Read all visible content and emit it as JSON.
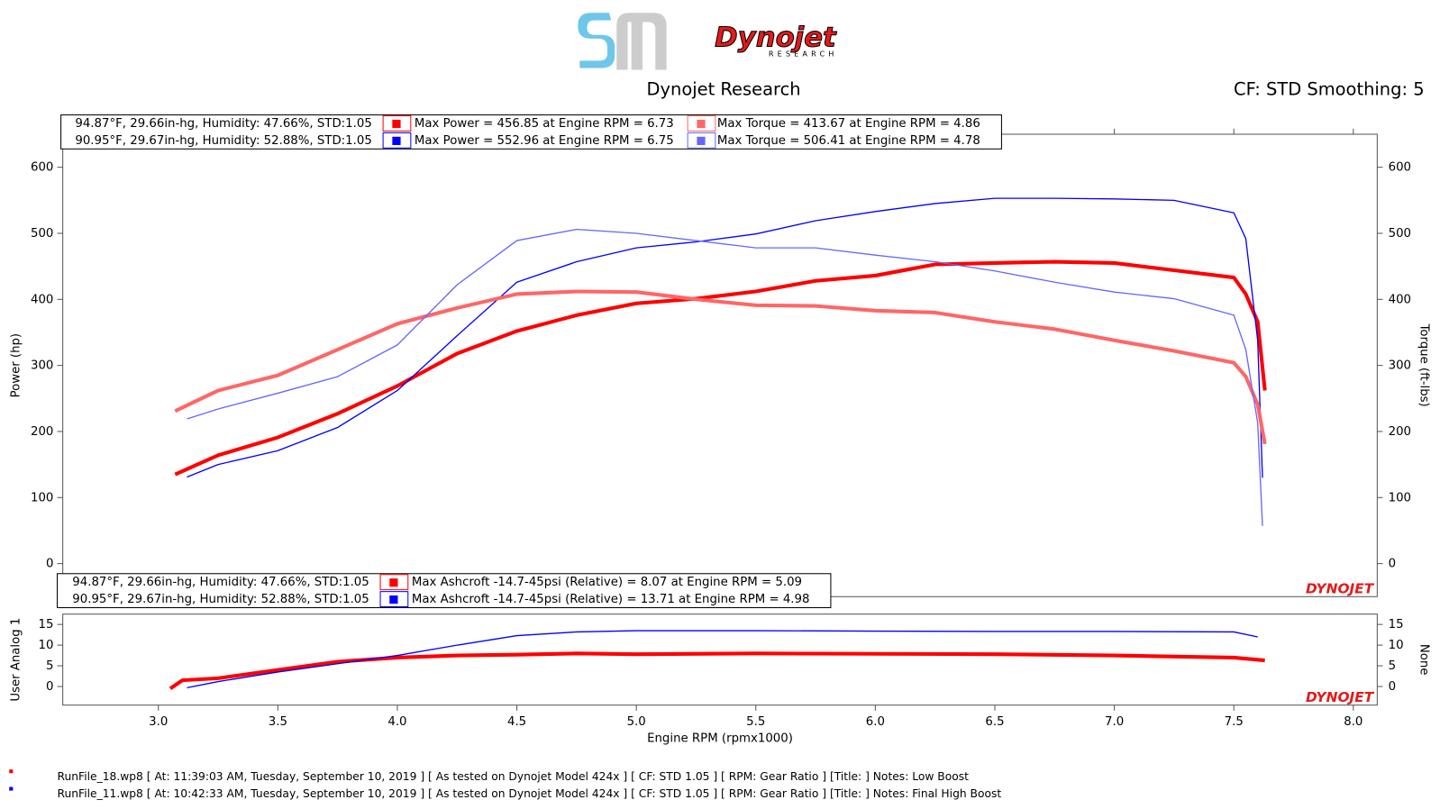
{
  "header": {
    "title": "Dynojet Research",
    "settings": "CF: STD Smoothing: 5",
    "logo": "Dynojet",
    "logo_sub": "RESEARCH"
  },
  "footer": [
    "RunFile_18.wp8 [ At: 11:39:03 AM, Tuesday, September 10, 2019 ] [ As tested on Dynojet Model 424x ] [ CF: STD 1.05 ] [ RPM: Gear Ratio ] [Title: ]  Notes: Low Boost",
    "RunFile_11.wp8 [ At: 10:42:33 AM, Tuesday, September 10, 2019 ] [ As tested on Dynojet Model 424x ] [ CF: STD 1.05 ] [ RPM: Gear Ratio ] [Title: ]  Notes: Final High Boost"
  ],
  "chart_data": [
    {
      "type": "line",
      "ylabel": "Power (hp)",
      "y2label": "Torque (ft-lbs)",
      "watermark": "DYNOJET",
      "xlim": [
        2.6,
        8.1
      ],
      "ylim": [
        -50,
        650
      ],
      "yticks": [
        0,
        100,
        200,
        300,
        400,
        500,
        600
      ],
      "y2lim": [
        -50,
        650
      ],
      "y2ticks": [
        0,
        100,
        200,
        300,
        400,
        500,
        600
      ],
      "info_rows": [
        {
          "conditions": "94.87°F, 29.66in-hg, Humidity: 47.66%, STD:1.05",
          "power": "Max Power = 456.85 at Engine RPM = 6.73",
          "torque": "Max Torque = 413.67 at Engine RPM = 4.86"
        },
        {
          "conditions": "90.95°F, 29.67in-hg, Humidity: 52.88%, STD:1.05",
          "power": "Max Power = 552.96 at Engine RPM = 6.75",
          "torque": "Max Torque = 506.41 at Engine RPM = 4.78"
        }
      ],
      "series": [
        {
          "color": "#ff0000",
          "width": 4,
          "x": [
            3.07,
            3.25,
            3.5,
            3.75,
            4.0,
            4.25,
            4.5,
            4.75,
            5.0,
            5.25,
            5.5,
            5.75,
            6.0,
            6.25,
            6.5,
            6.75,
            7.0,
            7.25,
            7.5,
            7.55,
            7.6,
            7.63
          ],
          "values": [
            135,
            164,
            191,
            227,
            269,
            318,
            352,
            376,
            394,
            401,
            412,
            428,
            436,
            453,
            455,
            457,
            455,
            444,
            433,
            408,
            366,
            262
          ]
        },
        {
          "color": "#0000ff",
          "width": 1.3,
          "x": [
            3.12,
            3.25,
            3.5,
            3.75,
            4.0,
            4.25,
            4.5,
            4.75,
            5.0,
            5.25,
            5.5,
            5.75,
            6.0,
            6.25,
            6.5,
            6.75,
            7.0,
            7.25,
            7.5,
            7.55,
            7.6,
            7.62
          ],
          "values": [
            131,
            150,
            171,
            206,
            262,
            345,
            426,
            457,
            478,
            487,
            499,
            519,
            533,
            545,
            553,
            553,
            552,
            550,
            531,
            492,
            338,
            130
          ]
        },
        {
          "color": "#ff6666",
          "width": 4,
          "axis": "y2",
          "x": [
            3.07,
            3.25,
            3.5,
            3.75,
            4.0,
            4.25,
            4.5,
            4.75,
            5.0,
            5.25,
            5.5,
            5.75,
            6.0,
            6.25,
            6.5,
            6.75,
            7.0,
            7.25,
            7.5,
            7.55,
            7.6,
            7.63
          ],
          "values": [
            231,
            262,
            285,
            324,
            363,
            387,
            408,
            412,
            411,
            400,
            391,
            390,
            383,
            380,
            366,
            355,
            338,
            322,
            304,
            283,
            241,
            181
          ]
        },
        {
          "color": "#6666ff",
          "width": 1.3,
          "axis": "y2",
          "x": [
            3.12,
            3.25,
            3.5,
            3.75,
            4.0,
            4.25,
            4.5,
            4.75,
            5.0,
            5.25,
            5.5,
            5.75,
            6.0,
            6.25,
            6.5,
            6.75,
            7.0,
            7.25,
            7.5,
            7.55,
            7.6,
            7.62
          ],
          "values": [
            219,
            234,
            258,
            283,
            331,
            422,
            489,
            506,
            500,
            489,
            478,
            478,
            467,
            457,
            443,
            426,
            411,
            401,
            376,
            324,
            213,
            57
          ]
        }
      ]
    },
    {
      "type": "line",
      "ylabel": "User Analog 1",
      "y2label": "None",
      "xlabel": "Engine RPM (rpmx1000)",
      "watermark": "DYNOJET",
      "xlim": [
        2.6,
        8.1
      ],
      "xticks": [
        {
          "value": 3,
          "label": "3.0"
        },
        3.5,
        {
          "value": 4,
          "label": "4.0"
        },
        4.5,
        {
          "value": 5,
          "label": "5.0"
        },
        5.5,
        {
          "value": 6,
          "label": "6.0"
        },
        6.5,
        {
          "value": 7,
          "label": "7.0"
        },
        7.5,
        {
          "value": 8,
          "label": "8.0"
        }
      ],
      "ylim": [
        -4.5,
        17.5
      ],
      "yticks": [
        0,
        5,
        10,
        15
      ],
      "y2lim": [
        -4.5,
        17.5
      ],
      "y2ticks": [
        0,
        5,
        10,
        15
      ],
      "info_rows": [
        {
          "conditions": "94.87°F, 29.66in-hg, Humidity: 47.66%, STD:1.05",
          "text": "Max Ashcroft -14.7-45psi (Relative) = 8.07 at Engine RPM = 5.09"
        },
        {
          "conditions": "90.95°F, 29.67in-hg, Humidity: 52.88%, STD:1.05",
          "text": "Max Ashcroft -14.7-45psi (Relative) = 13.71 at Engine RPM = 4.98"
        }
      ],
      "series": [
        {
          "color": "#ff0000",
          "width": 4,
          "x": [
            3.05,
            3.1,
            3.25,
            3.5,
            3.75,
            4.0,
            4.25,
            4.5,
            4.75,
            5.0,
            5.5,
            6.0,
            6.5,
            7.0,
            7.5,
            7.63
          ],
          "values": [
            -0.5,
            1.5,
            2,
            4,
            6,
            7,
            7.5,
            7.7,
            8,
            7.8,
            8,
            7.9,
            7.8,
            7.5,
            7,
            6.3
          ]
        },
        {
          "color": "#0000ff",
          "width": 1.3,
          "x": [
            3.12,
            3.25,
            3.5,
            3.75,
            4.0,
            4.25,
            4.5,
            4.75,
            5.0,
            5.5,
            6.0,
            6.5,
            7.0,
            7.5,
            7.6
          ],
          "values": [
            -0.3,
            1.2,
            3.5,
            5.5,
            7.5,
            10,
            12.3,
            13.2,
            13.5,
            13.5,
            13.4,
            13.3,
            13.3,
            13.2,
            12
          ]
        }
      ]
    }
  ]
}
